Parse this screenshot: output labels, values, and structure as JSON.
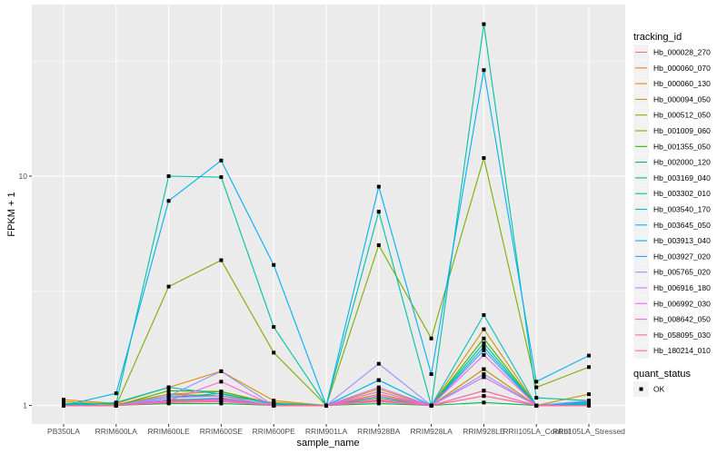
{
  "chart_data": {
    "type": "line",
    "xlabel": "sample_name",
    "ylabel": "FPKM + 1",
    "y_scale": "log10",
    "ylim": [
      0.83,
      56
    ],
    "y_ticks": [
      {
        "value": 1,
        "label": "1"
      },
      {
        "value": 10,
        "label": "10"
      }
    ],
    "grid": true,
    "legend_position": "right",
    "categories": [
      "PB350LA",
      "RRIM600LA",
      "RRIM600LE",
      "RRIM600SE",
      "RRIM600PE",
      "RRIM901LA",
      "RRIM928BA",
      "RRIM928LA",
      "RRIM928LE",
      "RRII105LA_Control",
      "RRII105LA_Stressed"
    ],
    "legend_title": "tracking_id",
    "series": [
      {
        "name": "Hb_000028_270",
        "color": "#F8766D",
        "values": [
          1.0,
          1.0,
          1.05,
          1.08,
          1.0,
          1.0,
          1.05,
          1.0,
          1.33,
          1.0,
          1.0
        ]
      },
      {
        "name": "Hb_000060_070",
        "color": "#EA8331",
        "values": [
          1.02,
          1.0,
          1.12,
          1.15,
          1.02,
          1.0,
          1.12,
          1.0,
          1.44,
          1.0,
          1.02
        ]
      },
      {
        "name": "Hb_000060_130",
        "color": "#D89000",
        "values": [
          1.06,
          1.02,
          1.2,
          1.41,
          1.05,
          1.0,
          1.18,
          1.0,
          2.15,
          1.0,
          1.04
        ]
      },
      {
        "name": "Hb_000094_050",
        "color": "#C09B00",
        "values": [
          1.04,
          1.01,
          1.12,
          1.1,
          1.03,
          1.0,
          1.15,
          1.0,
          1.44,
          1.0,
          1.12
        ]
      },
      {
        "name": "Hb_000512_050",
        "color": "#A3A500",
        "values": [
          1.01,
          1.0,
          1.05,
          1.06,
          1.0,
          1.0,
          1.06,
          1.0,
          1.16,
          1.0,
          1.02
        ]
      },
      {
        "name": "Hb_001009_060",
        "color": "#7CAE00",
        "values": [
          1.0,
          1.0,
          3.3,
          4.3,
          1.7,
          1.0,
          5.0,
          1.96,
          12.0,
          1.2,
          1.47
        ]
      },
      {
        "name": "Hb_001355_050",
        "color": "#39B600",
        "values": [
          1.01,
          1.0,
          1.16,
          1.15,
          1.01,
          1.0,
          1.1,
          1.0,
          1.96,
          1.0,
          1.01
        ]
      },
      {
        "name": "Hb_002000_120",
        "color": "#00BB4E",
        "values": [
          1.0,
          1.0,
          1.02,
          1.02,
          1.0,
          1.0,
          1.02,
          1.0,
          1.03,
          1.0,
          1.0
        ]
      },
      {
        "name": "Hb_003169_040",
        "color": "#00BF7D",
        "values": [
          1.01,
          1.0,
          1.08,
          1.13,
          1.01,
          1.0,
          1.08,
          1.0,
          1.87,
          1.0,
          1.03
        ]
      },
      {
        "name": "Hb_003302_010",
        "color": "#00C1A3",
        "values": [
          1.02,
          1.02,
          10.0,
          9.9,
          2.2,
          1.0,
          7.0,
          1.0,
          46.0,
          1.08,
          1.05
        ]
      },
      {
        "name": "Hb_003540_170",
        "color": "#00BFC4",
        "values": [
          1.0,
          1.03,
          1.2,
          1.12,
          1.02,
          1.0,
          1.29,
          1.0,
          2.48,
          1.0,
          1.02
        ]
      },
      {
        "name": "Hb_003645_050",
        "color": "#00BAE0",
        "values": [
          1.0,
          1.0,
          1.1,
          1.1,
          1.0,
          1.0,
          1.29,
          1.0,
          1.8,
          1.0,
          1.01
        ]
      },
      {
        "name": "Hb_003913_040",
        "color": "#00B0F6",
        "values": [
          1.0,
          1.13,
          7.8,
          11.7,
          4.1,
          1.0,
          9.0,
          1.37,
          29.0,
          1.27,
          1.65
        ]
      },
      {
        "name": "Hb_003927_020",
        "color": "#35A2FF",
        "values": [
          1.0,
          1.0,
          1.06,
          1.07,
          1.0,
          1.0,
          1.1,
          1.0,
          1.74,
          1.0,
          1.04
        ]
      },
      {
        "name": "Hb_005765_020",
        "color": "#9590FF",
        "values": [
          1.0,
          1.0,
          1.1,
          1.41,
          1.0,
          1.0,
          1.52,
          1.0,
          1.37,
          1.0,
          1.05
        ]
      },
      {
        "name": "Hb_006916_180",
        "color": "#C77CFF",
        "values": [
          1.0,
          1.0,
          1.08,
          1.1,
          1.0,
          1.0,
          1.2,
          1.0,
          1.33,
          1.0,
          1.0
        ]
      },
      {
        "name": "Hb_006992_030",
        "color": "#E76BF3",
        "values": [
          1.0,
          1.0,
          1.04,
          1.05,
          1.0,
          1.0,
          1.15,
          1.0,
          1.1,
          1.0,
          1.0
        ]
      },
      {
        "name": "Hb_008642_050",
        "color": "#FA62DB",
        "values": [
          1.0,
          1.0,
          1.05,
          1.27,
          1.0,
          1.0,
          1.1,
          1.0,
          1.66,
          1.0,
          1.0
        ]
      },
      {
        "name": "Hb_058095_030",
        "color": "#FF62BC",
        "values": [
          1.0,
          1.0,
          1.04,
          1.06,
          1.0,
          1.0,
          1.06,
          1.0,
          1.16,
          1.0,
          1.0
        ]
      },
      {
        "name": "Hb_180214_010",
        "color": "#FF6C91",
        "values": [
          1.0,
          1.0,
          1.03,
          1.04,
          1.0,
          1.0,
          1.04,
          1.0,
          1.1,
          1.0,
          1.0
        ]
      }
    ],
    "shape_legend": {
      "title": "quant_status",
      "items": [
        "OK"
      ]
    },
    "colors": {
      "panel": "#EBEBEB",
      "grid": "#FFFFFF",
      "point": "#000000",
      "legend_key": "#F2F2F2"
    }
  }
}
